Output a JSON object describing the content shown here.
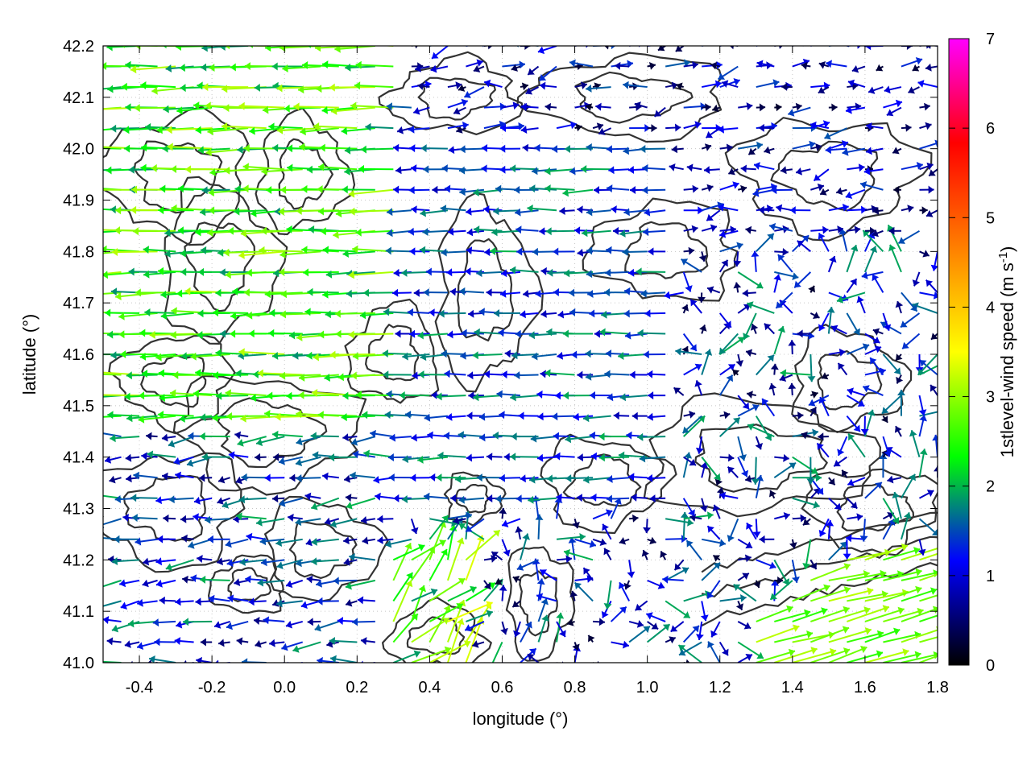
{
  "chart_data": {
    "type": "vector-field",
    "xlabel": "longitude (°)",
    "ylabel": "latitude (°)",
    "xlim": [
      -0.5,
      1.8
    ],
    "ylim": [
      41.0,
      42.2
    ],
    "xticks": [
      -0.4,
      -0.2,
      0.0,
      0.2,
      0.4,
      0.6,
      0.8,
      1.0,
      1.2,
      1.4,
      1.6,
      1.8
    ],
    "xtick_labels": [
      "-0.4",
      "-0.2",
      "0.0",
      "0.2",
      "0.4",
      "0.6",
      "0.8",
      "1.0",
      "1.2",
      "1.4",
      "1.6",
      "1.8"
    ],
    "yticks": [
      41.0,
      41.1,
      41.2,
      41.3,
      41.4,
      41.5,
      41.6,
      41.7,
      41.8,
      41.9,
      42.0,
      42.1,
      42.2
    ],
    "ytick_labels": [
      "41.0",
      "41.1",
      "41.2",
      "41.3",
      "41.4",
      "41.5",
      "41.6",
      "41.7",
      "41.8",
      "41.9",
      "42.0",
      "42.1",
      "42.2"
    ],
    "grid": true,
    "colorbar": {
      "label": "1stlevel-wind speed (m s-1)",
      "label_main": "1stlevel-wind speed (m s",
      "label_exp": "-1",
      "label_close": ")",
      "range": [
        0,
        7
      ],
      "ticks": [
        0,
        1,
        2,
        3,
        4,
        5,
        6,
        7
      ],
      "tick_labels": [
        "0",
        "1",
        "2",
        "3",
        "4",
        "5",
        "6",
        "7"
      ],
      "colormap": [
        "#000000",
        "#0000ff",
        "#00ff00",
        "#ffff00",
        "#ff7f00",
        "#ff0000",
        "#ff00ff"
      ]
    },
    "contour_color": "#333333",
    "vectors": [
      {
        "region": "west lowlands (lon -0.5..0.3, lat 41.45..42.2)",
        "direction": "westward",
        "speed_range": [
          1.8,
          3.2
        ]
      },
      {
        "region": "southwest (lon -0.5..0.3, lat 41.0..41.45)",
        "direction": "westward / variable",
        "speed_range": [
          0.5,
          2.0
        ]
      },
      {
        "region": "central (lon 0.3..1.1, lat 41.3..42.0)",
        "direction": "westward",
        "speed_range": [
          0.8,
          2.0
        ]
      },
      {
        "region": "northeast (lon 0.6..1.8, lat 41.8..42.2)",
        "direction": "variable / eastward",
        "speed_range": [
          0.2,
          1.6
        ]
      },
      {
        "region": "east (lon 1.1..1.8, lat 41.3..41.8)",
        "direction": "variable",
        "speed_range": [
          0.2,
          2.0
        ]
      },
      {
        "region": "southeast coast (lon 1.3..1.8, lat 41.0..41.2)",
        "direction": "east-northeastward",
        "speed_range": [
          2.5,
          3.2
        ]
      },
      {
        "region": "south-central (lon 0.25..0.5, lat 41.05..41.2)",
        "direction": "northeastward / northward",
        "speed_range": [
          2.0,
          3.8
        ]
      }
    ]
  }
}
